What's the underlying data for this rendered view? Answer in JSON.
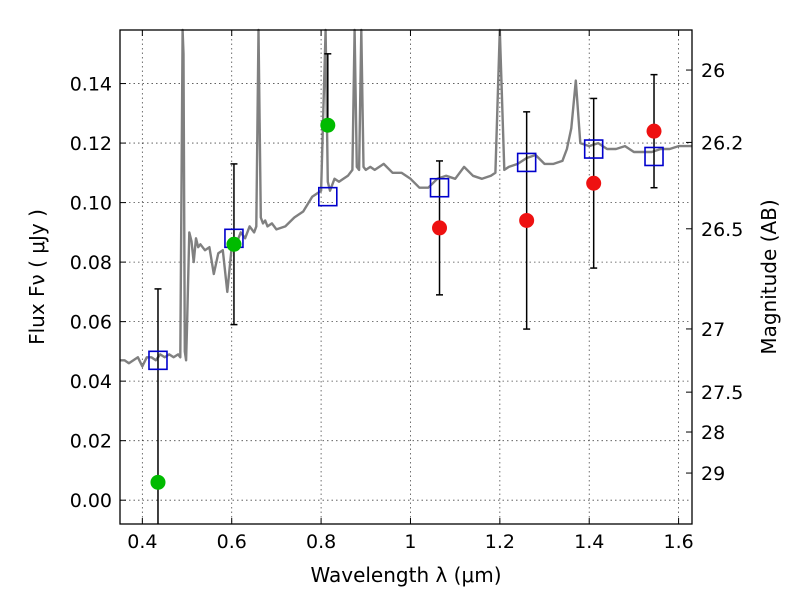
{
  "chart_data": {
    "type": "scatter",
    "title": "",
    "xlabel": "Wavelength  λ (μm)",
    "ylabel": "Flux  Fν  ( μJy )",
    "ylabel_right": "Magnitude (AB)",
    "xlim": [
      0.35,
      1.63
    ],
    "ylim": [
      -0.008,
      0.158
    ],
    "grid": true,
    "x_ticks": [
      0.4,
      0.6,
      0.8,
      1.0,
      1.2,
      1.4,
      1.6
    ],
    "x_tick_labels": [
      "0.4",
      "0.6",
      "0.8",
      "1",
      "1.2",
      "1.4",
      "1.6"
    ],
    "y_ticks": [
      0.0,
      0.02,
      0.04,
      0.06,
      0.08,
      0.1,
      0.12,
      0.14
    ],
    "y_tick_labels": [
      "0.00",
      "0.02",
      "0.04",
      "0.06",
      "0.08",
      "0.10",
      "0.12",
      "0.14"
    ],
    "right_ticks": [
      {
        "label": "26",
        "mag": 26.0
      },
      {
        "label": "26.2",
        "mag": 26.2
      },
      {
        "label": "26.5",
        "mag": 26.5
      },
      {
        "label": "27",
        "mag": 27.0
      },
      {
        "label": "27.5",
        "mag": 27.5
      },
      {
        "label": "28",
        "mag": 28.0
      },
      {
        "label": "29",
        "mag": 29.0
      }
    ],
    "colors": {
      "spectrum": "#808080",
      "green_points": "#00bb00",
      "red_points": "#ee1111",
      "model_squares": "#0000cc",
      "error_bars": "#000000"
    },
    "series": [
      {
        "role": "model spectrum",
        "style": "line",
        "x": [
          0.35,
          0.36,
          0.37,
          0.38,
          0.39,
          0.4,
          0.41,
          0.42,
          0.43,
          0.44,
          0.45,
          0.46,
          0.47,
          0.48,
          0.485,
          0.49,
          0.492,
          0.495,
          0.498,
          0.5,
          0.505,
          0.51,
          0.515,
          0.52,
          0.525,
          0.53,
          0.54,
          0.55,
          0.56,
          0.57,
          0.58,
          0.59,
          0.6,
          0.61,
          0.62,
          0.63,
          0.64,
          0.65,
          0.655,
          0.66,
          0.665,
          0.67,
          0.675,
          0.68,
          0.69,
          0.7,
          0.72,
          0.74,
          0.76,
          0.78,
          0.8,
          0.81,
          0.815,
          0.82,
          0.83,
          0.84,
          0.85,
          0.86,
          0.87,
          0.875,
          0.88,
          0.885,
          0.89,
          0.895,
          0.9,
          0.91,
          0.92,
          0.94,
          0.96,
          0.98,
          1.0,
          1.02,
          1.04,
          1.06,
          1.08,
          1.1,
          1.12,
          1.14,
          1.16,
          1.18,
          1.19,
          1.2,
          1.21,
          1.22,
          1.24,
          1.26,
          1.28,
          1.3,
          1.32,
          1.34,
          1.35,
          1.36,
          1.37,
          1.38,
          1.4,
          1.42,
          1.44,
          1.46,
          1.48,
          1.5,
          1.52,
          1.54,
          1.56,
          1.58,
          1.6,
          1.62,
          1.63
        ],
        "values": [
          0.047,
          0.047,
          0.046,
          0.047,
          0.048,
          0.045,
          0.048,
          0.048,
          0.047,
          0.049,
          0.048,
          0.049,
          0.048,
          0.049,
          0.048,
          0.158,
          0.15,
          0.05,
          0.047,
          0.058,
          0.09,
          0.087,
          0.08,
          0.088,
          0.085,
          0.086,
          0.084,
          0.085,
          0.076,
          0.083,
          0.084,
          0.07,
          0.085,
          0.086,
          0.09,
          0.088,
          0.092,
          0.09,
          0.092,
          0.158,
          0.095,
          0.093,
          0.094,
          0.092,
          0.093,
          0.091,
          0.092,
          0.095,
          0.097,
          0.102,
          0.104,
          0.158,
          0.107,
          0.104,
          0.108,
          0.107,
          0.108,
          0.109,
          0.111,
          0.158,
          0.112,
          0.111,
          0.158,
          0.112,
          0.111,
          0.112,
          0.111,
          0.113,
          0.11,
          0.11,
          0.108,
          0.105,
          0.105,
          0.108,
          0.109,
          0.108,
          0.112,
          0.109,
          0.108,
          0.109,
          0.11,
          0.158,
          0.111,
          0.112,
          0.113,
          0.115,
          0.116,
          0.113,
          0.113,
          0.114,
          0.118,
          0.125,
          0.141,
          0.12,
          0.119,
          0.12,
          0.118,
          0.118,
          0.119,
          0.117,
          0.117,
          0.117,
          0.118,
          0.118,
          0.119,
          0.119,
          0.119
        ]
      },
      {
        "role": "photometry (green)",
        "style": "circle",
        "x": [
          0.435,
          0.605,
          0.815
        ],
        "values": [
          0.006,
          0.086,
          0.126
        ],
        "err_low": [
          0.03,
          0.027,
          0.0
        ],
        "err_high": [
          0.065,
          0.027,
          0.024
        ]
      },
      {
        "role": "photometry (red)",
        "style": "circle",
        "x": [
          1.065,
          1.26,
          1.41,
          1.545
        ],
        "values": [
          0.0915,
          0.094,
          0.1065,
          0.124
        ],
        "err_low": [
          0.0225,
          0.0365,
          0.0285,
          0.019
        ],
        "err_high": [
          0.0225,
          0.0365,
          0.0285,
          0.019
        ]
      },
      {
        "role": "model photometry (squares)",
        "style": "square",
        "x": [
          0.435,
          0.605,
          0.815,
          1.065,
          1.26,
          1.41,
          1.545
        ],
        "values": [
          0.047,
          0.088,
          0.102,
          0.105,
          0.1135,
          0.118,
          0.1155
        ]
      }
    ]
  }
}
